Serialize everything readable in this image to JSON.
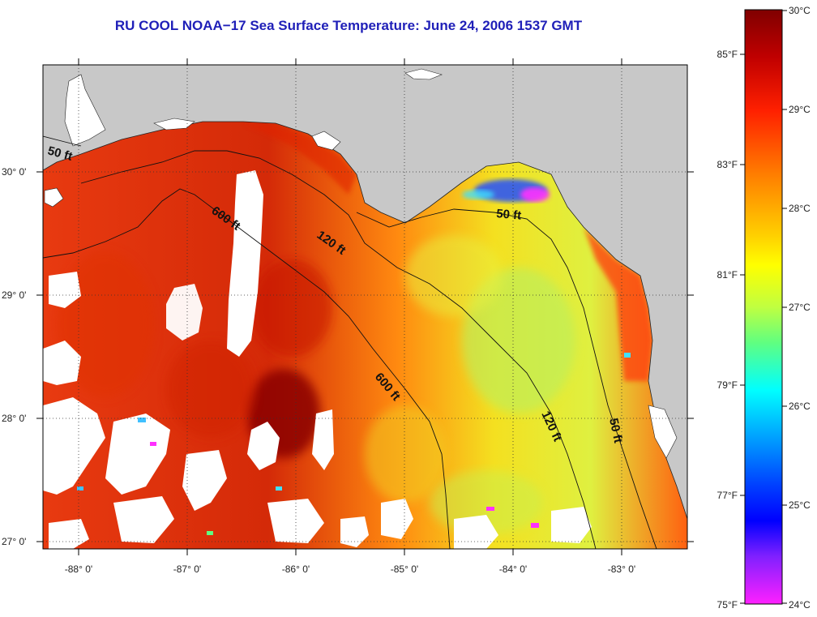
{
  "title": "RU COOL  NOAA−17  Sea Surface Temperature:  June 24, 2006 1537 GMT",
  "latitude_labels": [
    "30° 0'",
    "29° 0'",
    "28° 0'",
    "27° 0'"
  ],
  "longitude_labels": [
    "-88° 0'",
    "-87° 0'",
    "-86° 0'",
    "-85° 0'",
    "-84° 0'",
    "-83° 0'"
  ],
  "contour_labels": [
    "50 ft",
    "600 ft",
    "120 ft",
    "50 ft",
    "600 ft",
    "120 ft",
    "50 ft"
  ],
  "colorbar": {
    "celsius_labels": [
      "30°C",
      "29°C",
      "28°C",
      "27°C",
      "26°C",
      "25°C",
      "24°C"
    ],
    "fahrenheit_labels": [
      "85°F",
      "83°F",
      "81°F",
      "79°F",
      "77°F",
      "75°F"
    ],
    "stops": [
      "#800000",
      "#c00000",
      "#ff2000",
      "#ff8000",
      "#ffd000",
      "#ffff00",
      "#c0ff40",
      "#60ff80",
      "#00ffff",
      "#00a0ff",
      "#0040ff",
      "#0000ff",
      "#8020ff",
      "#ff20ff"
    ]
  },
  "colors": {
    "land": "#c8c8c8",
    "title": "#1f1fb8"
  }
}
